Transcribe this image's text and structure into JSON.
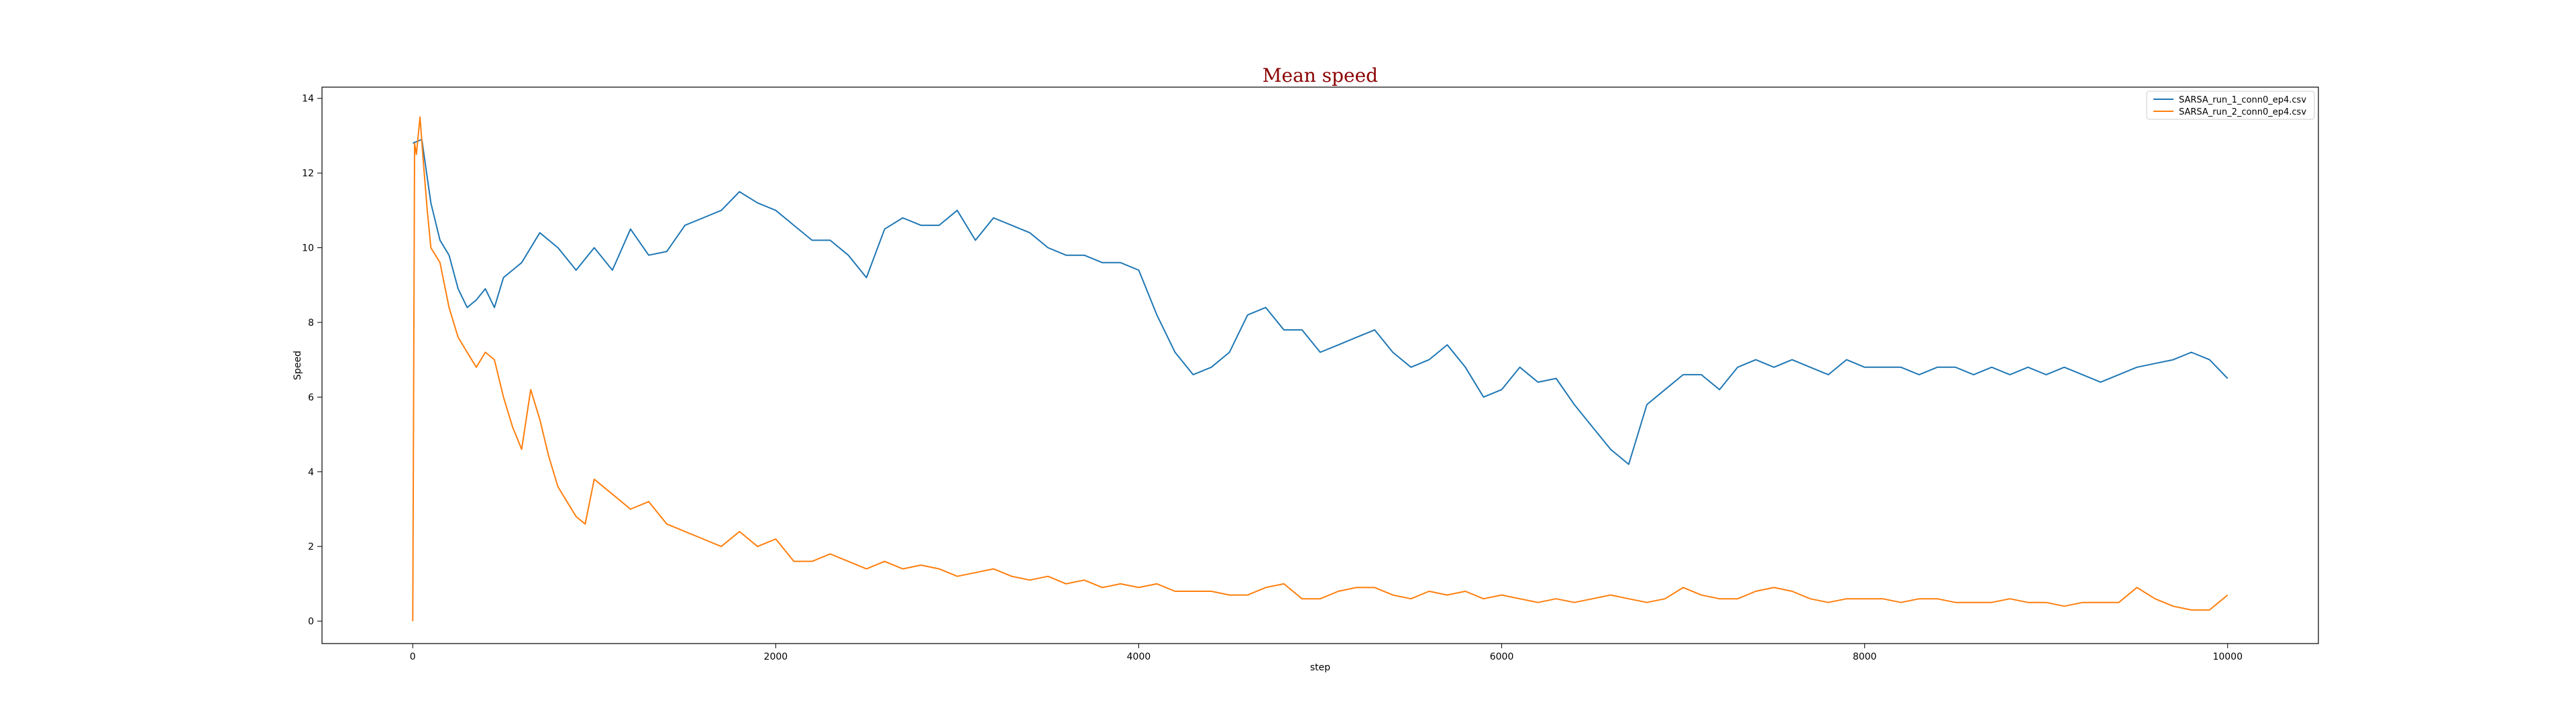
{
  "chart_data": {
    "type": "line",
    "title": "Mean speed",
    "xlabel": "step",
    "ylabel": "Speed",
    "xlim": [
      -500,
      10500
    ],
    "ylim": [
      -0.6,
      14.3
    ],
    "xticks": [
      0,
      2000,
      4000,
      6000,
      8000,
      10000
    ],
    "yticks": [
      0,
      2,
      4,
      6,
      8,
      10,
      12,
      14
    ],
    "grid": false,
    "legend_position": "top-right",
    "series": [
      {
        "name": "SARSA_run_1_conn0_ep4.csv",
        "color": "#1f77b4",
        "x": [
          0,
          50,
          100,
          150,
          200,
          250,
          300,
          350,
          400,
          450,
          500,
          600,
          700,
          800,
          900,
          1000,
          1100,
          1200,
          1300,
          1400,
          1500,
          1600,
          1700,
          1800,
          1900,
          2000,
          2100,
          2200,
          2300,
          2400,
          2500,
          2600,
          2700,
          2800,
          2900,
          3000,
          3100,
          3200,
          3300,
          3400,
          3500,
          3600,
          3700,
          3800,
          3900,
          4000,
          4100,
          4200,
          4300,
          4400,
          4500,
          4600,
          4700,
          4800,
          4900,
          5000,
          5100,
          5200,
          5300,
          5400,
          5500,
          5600,
          5700,
          5800,
          5900,
          6000,
          6100,
          6200,
          6300,
          6400,
          6500,
          6600,
          6700,
          6800,
          6900,
          7000,
          7100,
          7200,
          7300,
          7400,
          7500,
          7600,
          7700,
          7800,
          7900,
          8000,
          8100,
          8200,
          8300,
          8400,
          8500,
          8600,
          8700,
          8800,
          8900,
          9000,
          9100,
          9200,
          9300,
          9400,
          9500,
          9600,
          9700,
          9800,
          9900,
          10000
        ],
        "y": [
          12.8,
          12.9,
          11.2,
          10.2,
          9.8,
          8.9,
          8.4,
          8.6,
          8.9,
          8.4,
          9.2,
          9.6,
          10.4,
          10.0,
          9.4,
          10.0,
          9.4,
          10.5,
          9.8,
          9.9,
          10.6,
          10.8,
          11.0,
          11.5,
          11.2,
          11.0,
          10.6,
          10.2,
          10.2,
          9.8,
          9.2,
          10.5,
          10.8,
          10.6,
          10.6,
          11.0,
          10.2,
          10.8,
          10.6,
          10.4,
          10.0,
          9.8,
          9.8,
          9.6,
          9.6,
          9.4,
          8.2,
          7.2,
          6.6,
          6.8,
          7.2,
          8.2,
          8.4,
          7.8,
          7.8,
          7.2,
          7.4,
          7.6,
          7.8,
          7.2,
          6.8,
          7.0,
          7.4,
          6.8,
          6.0,
          6.2,
          6.8,
          6.4,
          6.5,
          5.8,
          5.2,
          4.6,
          4.2,
          5.8,
          6.2,
          6.6,
          6.6,
          6.2,
          6.8,
          7.0,
          6.8,
          7.0,
          6.8,
          6.6,
          7.0,
          6.8,
          6.8,
          6.8,
          6.6,
          6.8,
          6.8,
          6.6,
          6.8,
          6.6,
          6.8,
          6.6,
          6.8,
          6.6,
          6.4,
          6.6,
          6.8,
          6.9,
          7.0,
          7.2,
          7.0,
          6.5
        ]
      },
      {
        "name": "SARSA_run_2_conn0_ep4.csv",
        "color": "#ff7f0e",
        "x": [
          0,
          10,
          20,
          40,
          60,
          80,
          100,
          150,
          200,
          250,
          300,
          350,
          400,
          450,
          500,
          550,
          600,
          650,
          700,
          750,
          800,
          850,
          900,
          950,
          1000,
          1100,
          1200,
          1300,
          1400,
          1500,
          1600,
          1700,
          1800,
          1900,
          2000,
          2100,
          2200,
          2300,
          2400,
          2500,
          2600,
          2700,
          2800,
          2900,
          3000,
          3100,
          3200,
          3300,
          3400,
          3500,
          3600,
          3700,
          3800,
          3900,
          4000,
          4100,
          4200,
          4300,
          4400,
          4500,
          4600,
          4700,
          4800,
          4900,
          5000,
          5100,
          5200,
          5300,
          5400,
          5500,
          5600,
          5700,
          5800,
          5900,
          6000,
          6100,
          6200,
          6300,
          6400,
          6500,
          6600,
          6700,
          6800,
          6900,
          7000,
          7100,
          7200,
          7300,
          7400,
          7500,
          7600,
          7700,
          7800,
          7900,
          8000,
          8100,
          8200,
          8300,
          8400,
          8500,
          8600,
          8700,
          8800,
          8900,
          9000,
          9100,
          9200,
          9300,
          9400,
          9500,
          9600,
          9700,
          9800,
          9900,
          10000
        ],
        "y": [
          0.0,
          12.8,
          12.5,
          13.5,
          12.2,
          11.0,
          10.0,
          9.6,
          8.4,
          7.6,
          7.2,
          6.8,
          7.2,
          7.0,
          6.0,
          5.2,
          4.6,
          6.2,
          5.4,
          4.4,
          3.6,
          3.2,
          2.8,
          2.6,
          3.8,
          3.4,
          3.0,
          3.2,
          2.6,
          2.4,
          2.2,
          2.0,
          2.4,
          2.0,
          2.2,
          1.6,
          1.6,
          1.8,
          1.6,
          1.4,
          1.6,
          1.4,
          1.5,
          1.4,
          1.2,
          1.3,
          1.4,
          1.2,
          1.1,
          1.2,
          1.0,
          1.1,
          0.9,
          1.0,
          0.9,
          1.0,
          0.8,
          0.8,
          0.8,
          0.7,
          0.7,
          0.9,
          1.0,
          0.6,
          0.6,
          0.8,
          0.9,
          0.9,
          0.7,
          0.6,
          0.8,
          0.7,
          0.8,
          0.6,
          0.7,
          0.6,
          0.5,
          0.6,
          0.5,
          0.6,
          0.7,
          0.6,
          0.5,
          0.6,
          0.9,
          0.7,
          0.6,
          0.6,
          0.8,
          0.9,
          0.8,
          0.6,
          0.5,
          0.6,
          0.6,
          0.6,
          0.5,
          0.6,
          0.6,
          0.5,
          0.5,
          0.5,
          0.6,
          0.5,
          0.5,
          0.4,
          0.5,
          0.5,
          0.5,
          0.9,
          0.6,
          0.4,
          0.3,
          0.3,
          0.7
        ]
      }
    ]
  }
}
